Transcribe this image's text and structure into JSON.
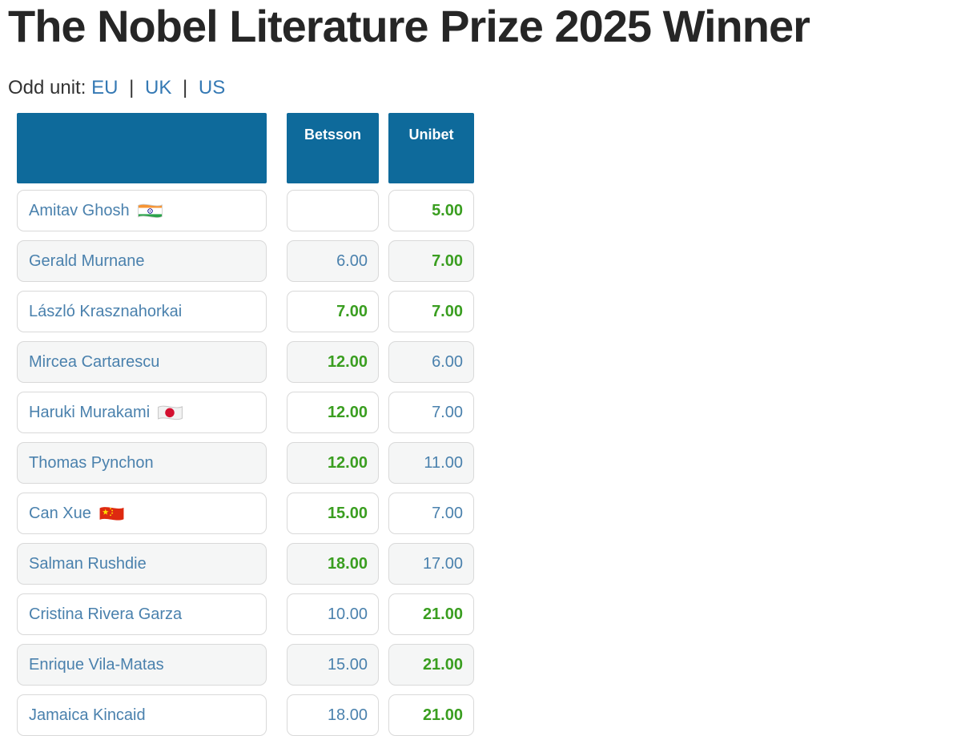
{
  "page": {
    "title": "The Nobel Literature Prize 2025 Winner",
    "odd_unit_label": "Odd unit:",
    "odd_units": [
      "EU",
      "UK",
      "US"
    ],
    "separator": "|"
  },
  "colors": {
    "header_bg": "#0e6a9b",
    "header_text": "#ffffff",
    "title_text": "#262626",
    "label_text": "#333333",
    "link_blue": "#3579b4",
    "name_blue": "#4a81ad",
    "odds_blue": "#4a81ad",
    "best_green": "#3a9e20",
    "row_alt_bg": "#f5f6f6",
    "cell_border": "#d9d9d9",
    "page_bg": "#ffffff"
  },
  "icons": {
    "india": "flag-india-icon",
    "japan": "flag-japan-icon",
    "china": "flag-china-icon"
  },
  "table": {
    "columns": [
      "",
      "Betsson",
      "Unibet"
    ],
    "rows": [
      {
        "name": "Amitav Ghosh",
        "flag": "india",
        "odds": [
          {
            "value": "",
            "best": false
          },
          {
            "value": "5.00",
            "best": true
          }
        ]
      },
      {
        "name": "Gerald Murnane",
        "flag": null,
        "odds": [
          {
            "value": "6.00",
            "best": false
          },
          {
            "value": "7.00",
            "best": true
          }
        ]
      },
      {
        "name": "László Krasznahorkai",
        "flag": null,
        "odds": [
          {
            "value": "7.00",
            "best": true
          },
          {
            "value": "7.00",
            "best": true
          }
        ]
      },
      {
        "name": "Mircea Cartarescu",
        "flag": null,
        "odds": [
          {
            "value": "12.00",
            "best": true
          },
          {
            "value": "6.00",
            "best": false
          }
        ]
      },
      {
        "name": "Haruki Murakami",
        "flag": "japan",
        "odds": [
          {
            "value": "12.00",
            "best": true
          },
          {
            "value": "7.00",
            "best": false
          }
        ]
      },
      {
        "name": "Thomas Pynchon",
        "flag": null,
        "odds": [
          {
            "value": "12.00",
            "best": true
          },
          {
            "value": "11.00",
            "best": false
          }
        ]
      },
      {
        "name": "Can Xue",
        "flag": "china",
        "odds": [
          {
            "value": "15.00",
            "best": true
          },
          {
            "value": "7.00",
            "best": false
          }
        ]
      },
      {
        "name": "Salman Rushdie",
        "flag": null,
        "odds": [
          {
            "value": "18.00",
            "best": true
          },
          {
            "value": "17.00",
            "best": false
          }
        ]
      },
      {
        "name": "Cristina Rivera Garza",
        "flag": null,
        "odds": [
          {
            "value": "10.00",
            "best": false
          },
          {
            "value": "21.00",
            "best": true
          }
        ]
      },
      {
        "name": "Enrique Vila-Matas",
        "flag": null,
        "odds": [
          {
            "value": "15.00",
            "best": false
          },
          {
            "value": "21.00",
            "best": true
          }
        ]
      },
      {
        "name": "Jamaica Kincaid",
        "flag": null,
        "odds": [
          {
            "value": "18.00",
            "best": false
          },
          {
            "value": "21.00",
            "best": true
          }
        ]
      }
    ]
  }
}
